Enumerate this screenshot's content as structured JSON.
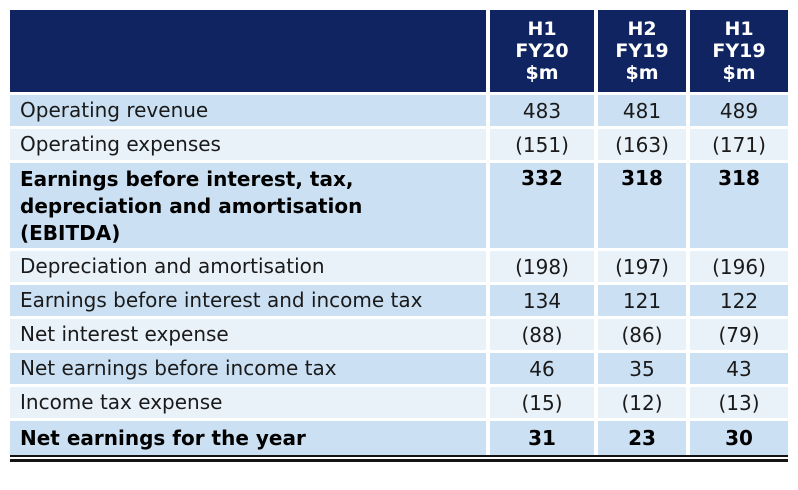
{
  "table": {
    "columns": [
      "",
      "H1\nFY20\n$m",
      "H2\nFY19\n$m",
      "H1\nFY19\n$m"
    ],
    "rows": [
      {
        "label": "Operating revenue",
        "values": [
          "483",
          "481",
          "489"
        ],
        "bold": false
      },
      {
        "label": "Operating expenses",
        "values": [
          "(151)",
          "(163)",
          "(171)"
        ],
        "bold": false
      },
      {
        "label": "Earnings before interest, tax,\ndepreciation and amortisation\n(EBITDA)",
        "values": [
          "332",
          "318",
          "318"
        ],
        "bold": true
      },
      {
        "label": "Depreciation and amortisation",
        "values": [
          "(198)",
          "(197)",
          "(196)"
        ],
        "bold": false
      },
      {
        "label": "Earnings before interest and income tax",
        "values": [
          "134",
          "121",
          "122"
        ],
        "bold": false
      },
      {
        "label": "Net interest expense",
        "values": [
          "(88)",
          "(86)",
          "(79)"
        ],
        "bold": false
      },
      {
        "label": "Net earnings before income tax",
        "values": [
          "46",
          "35",
          "43"
        ],
        "bold": false
      },
      {
        "label": "Income tax expense",
        "values": [
          "(15)",
          "(12)",
          "(13)"
        ],
        "bold": false
      },
      {
        "label": "Net earnings for the year",
        "values": [
          "31",
          "23",
          "30"
        ],
        "bold": true
      }
    ],
    "colors": {
      "header_bg": "#0F2461",
      "header_text": "#FFFFFF",
      "row_dark": "#CBE0F3",
      "row_light": "#E9F1F9",
      "text": "#1A1A1A",
      "total_rule": "#141414"
    }
  }
}
